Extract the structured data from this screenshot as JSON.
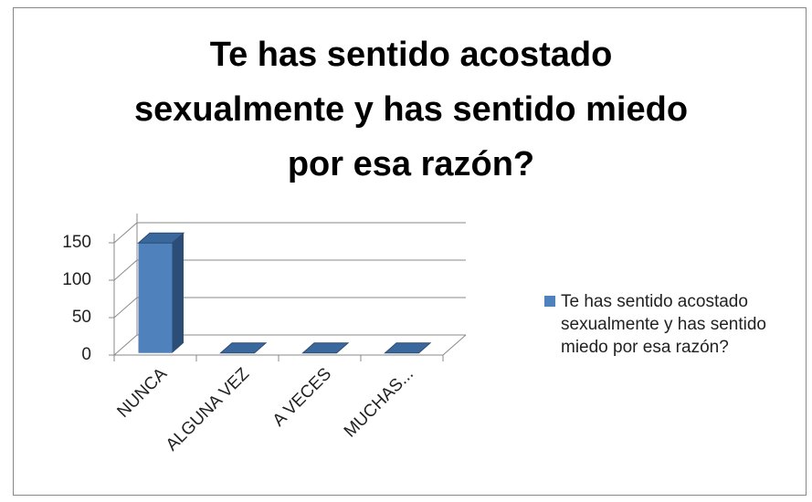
{
  "chart_data": {
    "type": "bar3d",
    "title": "Te has sentido acostado sexualmente y has sentido miedo por esa razón?",
    "categories": [
      "NUNCA",
      "ALGUNA VEZ",
      "A VECES",
      "MUCHAS..."
    ],
    "series": [
      {
        "name": "Te has sentido acostado sexualmente y has sentido miedo por esa razón?",
        "color": "#4f81bd",
        "values": [
          147,
          0,
          0,
          0
        ]
      }
    ],
    "ylim": [
      0,
      150
    ],
    "yticks": [
      0,
      50,
      100,
      150
    ],
    "grid": true,
    "legend": "right"
  }
}
